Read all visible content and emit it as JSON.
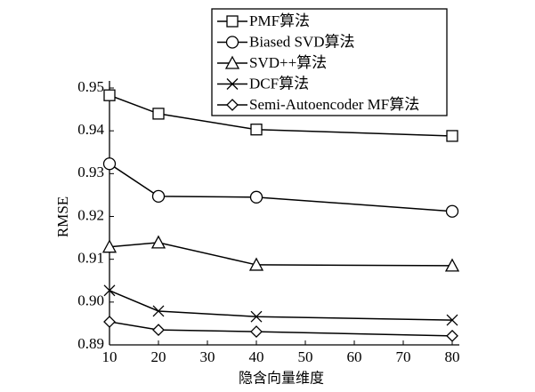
{
  "chart_data": {
    "type": "line",
    "x_label": "隐含向量维度",
    "y_label": "RMSE",
    "x": [
      10,
      20,
      40,
      80
    ],
    "series": [
      {
        "name": "PMF算法",
        "color": "#000000",
        "marker": "square",
        "values": [
          0.9483,
          0.944,
          0.9403,
          0.9388
        ]
      },
      {
        "name": "Biased SVD算法",
        "color": "#000000",
        "marker": "circle",
        "values": [
          0.9323,
          0.9247,
          0.9245,
          0.9212
        ]
      },
      {
        "name": "SVD++算法",
        "color": "#000000",
        "marker": "triangle",
        "values": [
          0.9129,
          0.9139,
          0.9087,
          0.9085
        ]
      },
      {
        "name": "DCF算法",
        "color": "#000000",
        "marker": "x",
        "values": [
          0.9027,
          0.8979,
          0.8966,
          0.8958
        ]
      },
      {
        "name": "Semi-Autoencoder MF算法",
        "color": "#000000",
        "marker": "diamond",
        "values": [
          0.8954,
          0.8935,
          0.8931,
          0.8921
        ]
      }
    ],
    "xlim": [
      10,
      80
    ],
    "xticks": [
      10,
      20,
      30,
      40,
      50,
      60,
      70,
      80
    ],
    "ylim": [
      0.89,
      0.95
    ],
    "yticks": [
      0.89,
      {
        "value": 0.9,
        "label": "0.90"
      },
      0.91,
      0.92,
      0.93,
      0.94,
      0.95
    ],
    "legend": "upper right"
  }
}
